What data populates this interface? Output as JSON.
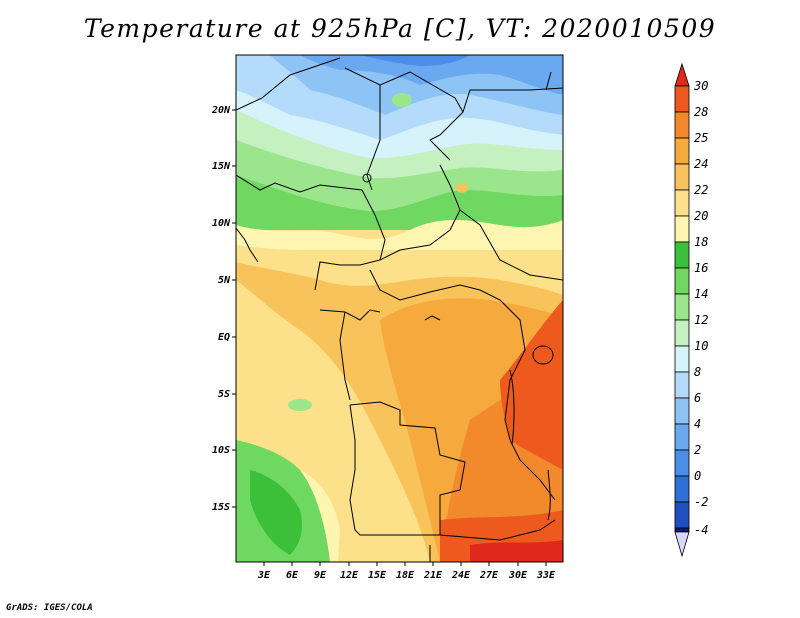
{
  "title": "Temperature at 925hPa [C], VT: 2020010509",
  "credit": "GrADS: IGES/COLA",
  "map": {
    "lat_ticks": [
      "20N",
      "15N",
      "10N",
      "5N",
      "EQ",
      "5S",
      "10S",
      "15S"
    ],
    "lon_ticks": [
      "3E",
      "6E",
      "9E",
      "12E",
      "15E",
      "18E",
      "21E",
      "24E",
      "27E",
      "30E",
      "33E"
    ]
  },
  "colorbar": {
    "labels": [
      "-4",
      "-2",
      "0",
      "2",
      "4",
      "6",
      "8",
      "10",
      "12",
      "14",
      "16",
      "18",
      "20",
      "22",
      "24",
      "25",
      "28",
      "30"
    ],
    "colors": {
      "darkest_blue": "#0a1a7a",
      "blue_0": "#1f4fc0",
      "blue_2": "#2f6fd8",
      "blue_4": "#4a8ee8",
      "blue_6": "#6aa8f0",
      "blue_8": "#8ec3f5",
      "light_blue": "#b4dcfa",
      "pale_cyan": "#d6f2fb",
      "pale_green": "#c5f0c0",
      "light_green": "#9be68c",
      "green": "#6fd860",
      "dark_green": "#3cc039",
      "cream": "#fdf5b0",
      "light_orange": "#fce08a",
      "orange_22": "#f9c35c",
      "orange_24": "#f6a93c",
      "orange_25": "#f2892a",
      "red_orange": "#ee5a1e",
      "red": "#e0281c"
    }
  }
}
